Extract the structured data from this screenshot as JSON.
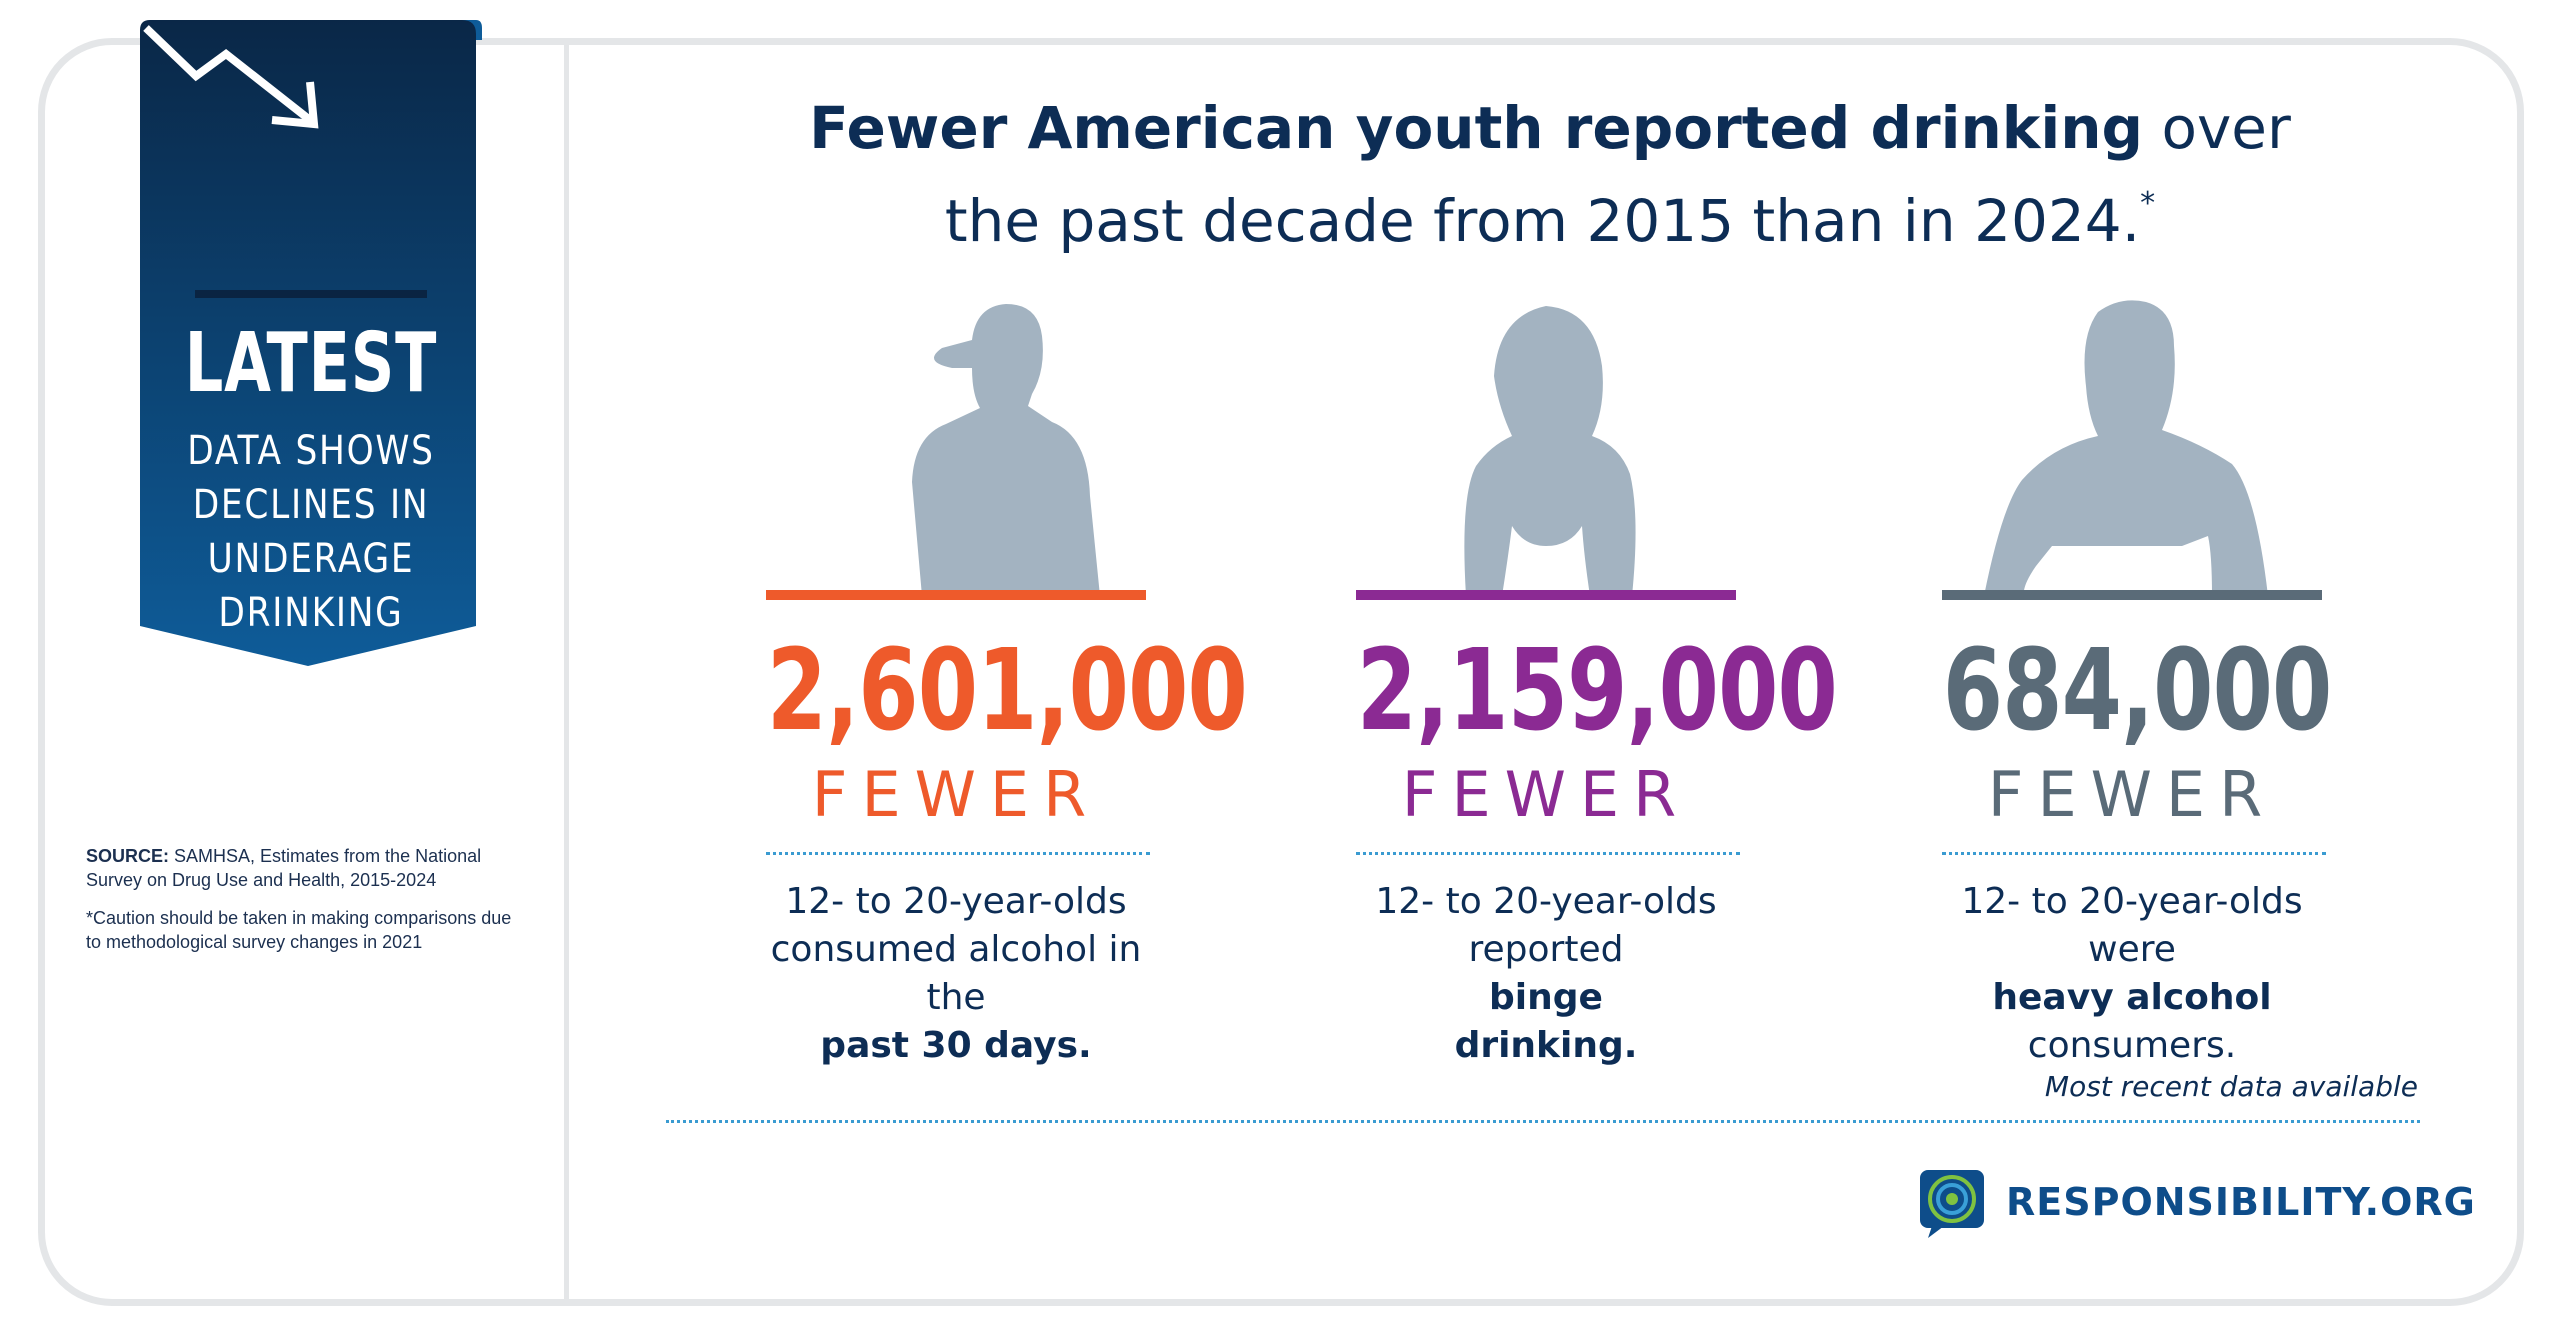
{
  "banner": {
    "title": "LATEST",
    "subtitle_lines": [
      "DATA SHOWS",
      "DECLINES IN",
      "UNDERAGE",
      "DRINKING"
    ]
  },
  "headline": {
    "bold": "Fewer American youth reported drinking",
    "rest_line1": " over",
    "line2": "the past decade from 2015 than in 2024.",
    "footnote_mark": "*"
  },
  "stats": [
    {
      "number": "2,601,000",
      "label": "FEWER",
      "color": "#ee5a2b",
      "desc_line1": "12- to 20-year-olds",
      "desc_line2": "consumed alcohol in the",
      "desc_bold": "past 30 days."
    },
    {
      "number": "2,159,000",
      "label": "FEWER",
      "color": "#8b2a93",
      "desc_line1": "12- to 20-year-olds",
      "desc_line2_plain": "reported ",
      "desc_line2_bold": "binge",
      "desc_bold": "drinking."
    },
    {
      "number": "684,000",
      "label": "FEWER",
      "color": "#5a6b78",
      "desc_line1": "12- to 20-year-olds",
      "desc_line2_plain": "were ",
      "desc_line2_bold": "heavy alcohol",
      "desc_line3": "consumers."
    }
  ],
  "source": {
    "label": "SOURCE:",
    "text": " SAMHSA, Estimates from the National Survey on Drug Use and Health, 2015-2024",
    "caution": "*Caution should be taken in making comparisons due to methodological survey changes in 2021"
  },
  "footer": {
    "note": "Most recent data available",
    "brand": "RESPONSIBILITY.ORG"
  },
  "colors": {
    "navy": "#0d2d55",
    "silhouette": "#a3b3c1",
    "orange": "#ee5a2b",
    "purple": "#8b2a93",
    "slate": "#5a6b78"
  }
}
